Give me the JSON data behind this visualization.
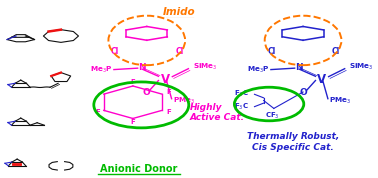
{
  "bg_color": "#ffffff",
  "green_circle_color": "#00bb00",
  "orange_dashed_color": "#ff7700",
  "magenta_color": "#ff00cc",
  "blue_color": "#2222cc",
  "red_color": "#ee1111",
  "dark_color": "#111111",
  "label_anionic_donor": "Anionic Donor",
  "label_imido": "Imido",
  "label_highly_active": "Highly\nActive Cat.",
  "label_thermally": "Thermally Robust,\nCis Specific Cat."
}
